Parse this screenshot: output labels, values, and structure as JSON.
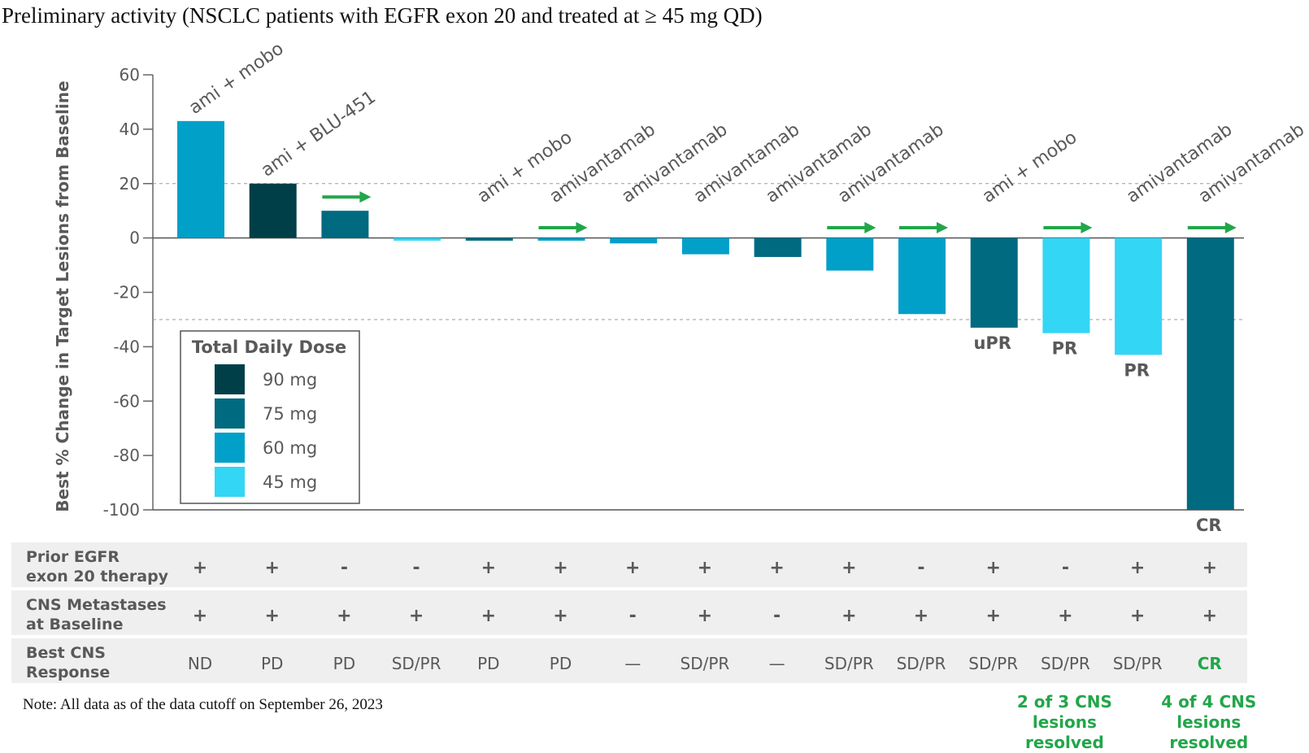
{
  "title": "Preliminary activity (NSCLC patients with EGFR exon 20 and treated at ≥ 45 mg QD)",
  "note": "Note: All data as of the data  cutoff on September 26, 2023",
  "colors": {
    "90 mg": "#003f48",
    "75 mg": "#006a80",
    "60 mg": "#00a0c8",
    "45 mg": "#33d6f5",
    "arrow": "#22a64a"
  },
  "chart_data": {
    "type": "bar",
    "ylabel": "Best % Change in Target Lesions from Baseline",
    "ylim": [
      -100,
      60
    ],
    "yticks": [
      60,
      40,
      20,
      0,
      -20,
      -40,
      -60,
      -80,
      -100
    ],
    "reference_lines": [
      20,
      -30
    ],
    "legend": {
      "title": "Total Daily Dose",
      "entries": [
        "90 mg",
        "75 mg",
        "60 mg",
        "45 mg"
      ]
    },
    "bars": [
      {
        "value": 43,
        "dose": "60 mg",
        "combo": "ami + mobo",
        "ongoing": false,
        "response": ""
      },
      {
        "value": 20,
        "dose": "90 mg",
        "combo": "ami + BLU-451",
        "ongoing": false,
        "response": ""
      },
      {
        "value": 10,
        "dose": "75 mg",
        "combo": "",
        "ongoing": true,
        "response": ""
      },
      {
        "value": -1,
        "dose": "45 mg",
        "combo": "",
        "ongoing": false,
        "response": ""
      },
      {
        "value": -1,
        "dose": "75 mg",
        "combo": "ami + mobo",
        "ongoing": false,
        "response": ""
      },
      {
        "value": -1,
        "dose": "60 mg",
        "combo": "amivantamab",
        "ongoing": true,
        "response": ""
      },
      {
        "value": -2,
        "dose": "60 mg",
        "combo": "amivantamab",
        "ongoing": false,
        "response": ""
      },
      {
        "value": -6,
        "dose": "60 mg",
        "combo": "amivantamab",
        "ongoing": false,
        "response": ""
      },
      {
        "value": -7,
        "dose": "75 mg",
        "combo": "amivantamab",
        "ongoing": false,
        "response": ""
      },
      {
        "value": -12,
        "dose": "60 mg",
        "combo": "amivantamab",
        "ongoing": true,
        "response": ""
      },
      {
        "value": -28,
        "dose": "60 mg",
        "combo": "",
        "ongoing": true,
        "response": ""
      },
      {
        "value": -33,
        "dose": "75 mg",
        "combo": "ami + mobo",
        "ongoing": false,
        "response": "uPR"
      },
      {
        "value": -35,
        "dose": "45 mg",
        "combo": "",
        "ongoing": true,
        "response": "PR"
      },
      {
        "value": -43,
        "dose": "45 mg",
        "combo": "amivantamab",
        "ongoing": false,
        "response": "PR"
      },
      {
        "value": -100,
        "dose": "75 mg",
        "combo": "amivantamab",
        "ongoing": true,
        "response": "CR"
      }
    ],
    "table": [
      {
        "label": [
          "Prior EGFR",
          "exon 20 therapy"
        ],
        "values": [
          "+",
          "+",
          "-",
          "-",
          "+",
          "+",
          "+",
          "+",
          "+",
          "+",
          "-",
          "+",
          "-",
          "+",
          "+"
        ]
      },
      {
        "label": [
          "CNS Metastases",
          "at Baseline"
        ],
        "values": [
          "+",
          "+",
          "+",
          "+",
          "+",
          "+",
          "-",
          "+",
          "-",
          "+",
          "+",
          "+",
          "+",
          "+",
          "+"
        ]
      },
      {
        "label": [
          "Best CNS",
          "Response"
        ],
        "values": [
          "ND",
          "PD",
          "PD",
          "SD/PR",
          "PD",
          "PD",
          "—",
          "SD/PR",
          "—",
          "SD/PR",
          "SD/PR",
          "SD/PR",
          "SD/PR",
          "SD/PR",
          "CR"
        ]
      }
    ],
    "footnotes": [
      {
        "bar": 12,
        "lines": [
          "2 of 3 CNS",
          "lesions",
          "resolved"
        ]
      },
      {
        "bar": 14,
        "lines": [
          "4 of 4 CNS",
          "lesions",
          "resolved"
        ]
      }
    ]
  }
}
